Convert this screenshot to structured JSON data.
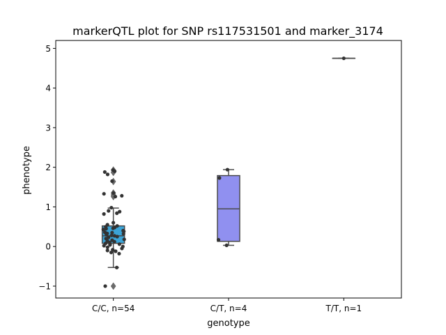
{
  "chart_data": {
    "type": "box",
    "title": "markerQTL plot for SNP rs117531501 and marker_3174",
    "xlabel": "genotype",
    "ylabel": "phenotype",
    "categories": [
      "C/C, n=54",
      "C/T, n=4",
      "T/T, n=1"
    ],
    "ylim": [
      -1.3,
      5.2
    ],
    "yticks": [
      -1,
      0,
      1,
      2,
      3,
      4,
      5
    ],
    "ytick_labels": [
      "−1",
      "0",
      "1",
      "2",
      "3",
      "4",
      "5"
    ],
    "grid": false,
    "boxes": [
      {
        "category": "C/C, n=54",
        "color": "#3ba3d6",
        "whisker_low": -0.53,
        "q1": 0.08,
        "median": 0.27,
        "q3": 0.52,
        "whisker_high": 0.97,
        "outliers": [
          1.93,
          1.87,
          1.64,
          1.35,
          1.3,
          1.26,
          -1.0
        ]
      },
      {
        "category": "C/T, n=4",
        "color": "#9090f0",
        "whisker_low": 0.03,
        "q1": 0.13,
        "median": 0.95,
        "q3": 1.79,
        "whisker_high": 1.94,
        "outliers": []
      },
      {
        "category": "T/T, n=1",
        "color": "#aaaaaa",
        "whisker_low": 4.75,
        "q1": 4.75,
        "median": 4.75,
        "q3": 4.75,
        "whisker_high": 4.75,
        "outliers": []
      }
    ],
    "points": [
      {
        "category": "C/C, n=54",
        "values": [
          1.93,
          1.9,
          1.88,
          1.82,
          1.65,
          1.35,
          1.33,
          1.28,
          1.26,
          0.98,
          0.9,
          0.88,
          0.84,
          0.82,
          0.6,
          0.55,
          0.52,
          0.5,
          0.48,
          0.46,
          0.45,
          0.43,
          0.4,
          0.38,
          0.36,
          0.35,
          0.32,
          0.3,
          0.28,
          0.27,
          0.25,
          0.23,
          0.2,
          0.18,
          0.16,
          0.14,
          0.12,
          0.1,
          0.08,
          0.06,
          0.05,
          0.04,
          0.02,
          0.0,
          -0.02,
          -0.05,
          -0.08,
          -0.1,
          -0.12,
          -0.15,
          -0.18,
          -0.53,
          -1.0,
          0.33
        ]
      },
      {
        "category": "C/T, n=4",
        "values": [
          1.94,
          1.73,
          0.17,
          0.03
        ]
      },
      {
        "category": "T/T, n=1",
        "values": [
          4.75
        ]
      }
    ]
  }
}
